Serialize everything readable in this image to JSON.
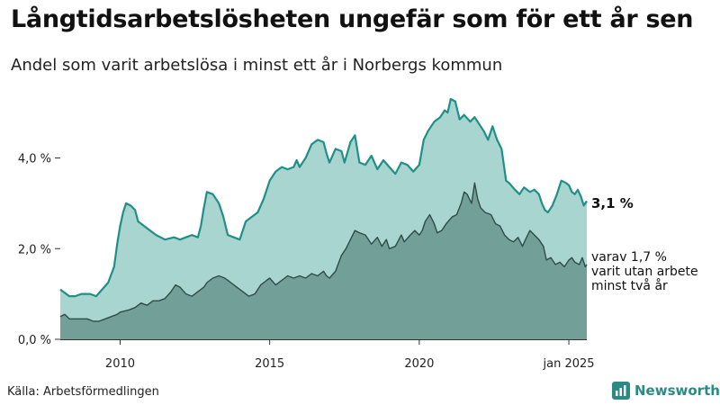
{
  "title": "Långtidsarbetslösheten ungefär som för ett år sen",
  "subtitle": "Andel som varit arbetslösa i minst ett år i Norbergs kommun",
  "source": "Källa: Arbetsförmedlingen",
  "brand": "Newsworthy",
  "end_label_total": "3,1 %",
  "end_label_long_1": "varav 1,7 %",
  "end_label_long_2": "varit utan arbete",
  "end_label_long_3": "minst två år",
  "colors": {
    "total_fill": "#a8d5cf",
    "total_line": "#1f9086",
    "long_fill": "#729f98",
    "long_line": "#2f4c46",
    "axis": "#333333",
    "brand": "#2a8a84"
  },
  "chart_data": {
    "type": "area",
    "x_start": "2008-01",
    "x_end": "2025-01",
    "x_step": "month",
    "x_ticks": [
      {
        "value": 2010,
        "label": "2010"
      },
      {
        "value": 2015,
        "label": "2015"
      },
      {
        "value": 2020,
        "label": "2020"
      },
      {
        "value": 2025,
        "label": "jan 2025"
      }
    ],
    "y_ticks": [
      {
        "value": 0,
        "label": "0,0 %"
      },
      {
        "value": 2,
        "label": "2,0 %"
      },
      {
        "value": 4,
        "label": "4,0 %"
      }
    ],
    "ylim": [
      0,
      5.4
    ],
    "series": [
      {
        "name": "Andel som varit arbetslösa i minst ett år",
        "key": "total",
        "anchors": [
          [
            2008.0,
            1.1
          ],
          [
            2008.3,
            0.95
          ],
          [
            2008.5,
            0.95
          ],
          [
            2008.7,
            1.0
          ],
          [
            2009.0,
            1.0
          ],
          [
            2009.2,
            0.95
          ],
          [
            2009.4,
            1.1
          ],
          [
            2009.6,
            1.25
          ],
          [
            2009.8,
            1.6
          ],
          [
            2009.9,
            2.1
          ],
          [
            2010.0,
            2.5
          ],
          [
            2010.1,
            2.8
          ],
          [
            2010.2,
            3.0
          ],
          [
            2010.35,
            2.95
          ],
          [
            2010.5,
            2.85
          ],
          [
            2010.6,
            2.6
          ],
          [
            2010.8,
            2.5
          ],
          [
            2011.0,
            2.4
          ],
          [
            2011.2,
            2.3
          ],
          [
            2011.5,
            2.2
          ],
          [
            2011.8,
            2.25
          ],
          [
            2012.0,
            2.2
          ],
          [
            2012.2,
            2.25
          ],
          [
            2012.4,
            2.3
          ],
          [
            2012.6,
            2.25
          ],
          [
            2012.7,
            2.5
          ],
          [
            2012.8,
            2.9
          ],
          [
            2012.9,
            3.25
          ],
          [
            2013.1,
            3.2
          ],
          [
            2013.3,
            3.0
          ],
          [
            2013.45,
            2.7
          ],
          [
            2013.6,
            2.3
          ],
          [
            2013.8,
            2.25
          ],
          [
            2014.0,
            2.2
          ],
          [
            2014.2,
            2.6
          ],
          [
            2014.4,
            2.7
          ],
          [
            2014.6,
            2.8
          ],
          [
            2014.8,
            3.1
          ],
          [
            2015.0,
            3.5
          ],
          [
            2015.2,
            3.7
          ],
          [
            2015.4,
            3.8
          ],
          [
            2015.6,
            3.75
          ],
          [
            2015.8,
            3.8
          ],
          [
            2015.9,
            3.95
          ],
          [
            2016.0,
            3.8
          ],
          [
            2016.2,
            4.0
          ],
          [
            2016.4,
            4.3
          ],
          [
            2016.6,
            4.4
          ],
          [
            2016.8,
            4.35
          ],
          [
            2016.9,
            4.1
          ],
          [
            2017.0,
            3.9
          ],
          [
            2017.2,
            4.2
          ],
          [
            2017.4,
            4.15
          ],
          [
            2017.5,
            3.9
          ],
          [
            2017.7,
            4.35
          ],
          [
            2017.85,
            4.5
          ],
          [
            2017.95,
            4.1
          ],
          [
            2018.0,
            3.9
          ],
          [
            2018.2,
            3.85
          ],
          [
            2018.4,
            4.05
          ],
          [
            2018.6,
            3.75
          ],
          [
            2018.8,
            3.95
          ],
          [
            2019.0,
            3.8
          ],
          [
            2019.2,
            3.65
          ],
          [
            2019.4,
            3.9
          ],
          [
            2019.6,
            3.85
          ],
          [
            2019.8,
            3.7
          ],
          [
            2020.0,
            3.85
          ],
          [
            2020.15,
            4.4
          ],
          [
            2020.3,
            4.6
          ],
          [
            2020.5,
            4.8
          ],
          [
            2020.7,
            4.9
          ],
          [
            2020.85,
            5.05
          ],
          [
            2020.95,
            5.0
          ],
          [
            2021.05,
            5.3
          ],
          [
            2021.2,
            5.25
          ],
          [
            2021.35,
            4.85
          ],
          [
            2021.5,
            4.95
          ],
          [
            2021.7,
            4.8
          ],
          [
            2021.85,
            4.9
          ],
          [
            2022.0,
            4.75
          ],
          [
            2022.15,
            4.6
          ],
          [
            2022.3,
            4.4
          ],
          [
            2022.45,
            4.7
          ],
          [
            2022.6,
            4.4
          ],
          [
            2022.75,
            4.2
          ],
          [
            2022.9,
            3.5
          ],
          [
            2023.0,
            3.45
          ],
          [
            2023.2,
            3.3
          ],
          [
            2023.35,
            3.2
          ],
          [
            2023.5,
            3.35
          ],
          [
            2023.7,
            3.25
          ],
          [
            2023.85,
            3.3
          ],
          [
            2024.0,
            3.2
          ],
          [
            2024.1,
            3.0
          ],
          [
            2024.2,
            2.85
          ],
          [
            2024.3,
            2.8
          ],
          [
            2024.45,
            2.95
          ],
          [
            2024.6,
            3.2
          ],
          [
            2024.75,
            3.5
          ],
          [
            2024.9,
            3.45
          ],
          [
            2025.0,
            3.4
          ],
          [
            2025.1,
            3.25
          ],
          [
            2025.2,
            3.2
          ],
          [
            2025.3,
            3.3
          ],
          [
            2025.4,
            3.15
          ],
          [
            2025.5,
            2.95
          ],
          [
            2025.6,
            3.05
          ]
        ]
      },
      {
        "name": "varit utan arbete minst två år",
        "key": "long",
        "anchors": [
          [
            2008.0,
            0.5
          ],
          [
            2008.15,
            0.55
          ],
          [
            2008.3,
            0.45
          ],
          [
            2008.6,
            0.45
          ],
          [
            2008.9,
            0.45
          ],
          [
            2009.1,
            0.4
          ],
          [
            2009.3,
            0.4
          ],
          [
            2009.5,
            0.45
          ],
          [
            2009.7,
            0.5
          ],
          [
            2009.9,
            0.55
          ],
          [
            2010.0,
            0.6
          ],
          [
            2010.3,
            0.65
          ],
          [
            2010.5,
            0.7
          ],
          [
            2010.7,
            0.8
          ],
          [
            2010.9,
            0.75
          ],
          [
            2011.1,
            0.85
          ],
          [
            2011.3,
            0.85
          ],
          [
            2011.5,
            0.9
          ],
          [
            2011.7,
            1.05
          ],
          [
            2011.85,
            1.2
          ],
          [
            2012.0,
            1.15
          ],
          [
            2012.2,
            1.0
          ],
          [
            2012.4,
            0.95
          ],
          [
            2012.6,
            1.05
          ],
          [
            2012.8,
            1.15
          ],
          [
            2012.9,
            1.25
          ],
          [
            2013.1,
            1.35
          ],
          [
            2013.3,
            1.4
          ],
          [
            2013.5,
            1.35
          ],
          [
            2013.7,
            1.25
          ],
          [
            2013.9,
            1.15
          ],
          [
            2014.1,
            1.05
          ],
          [
            2014.3,
            0.95
          ],
          [
            2014.5,
            1.0
          ],
          [
            2014.7,
            1.2
          ],
          [
            2014.9,
            1.3
          ],
          [
            2015.0,
            1.35
          ],
          [
            2015.2,
            1.2
          ],
          [
            2015.4,
            1.3
          ],
          [
            2015.6,
            1.4
          ],
          [
            2015.8,
            1.35
          ],
          [
            2016.0,
            1.4
          ],
          [
            2016.2,
            1.35
          ],
          [
            2016.4,
            1.45
          ],
          [
            2016.6,
            1.4
          ],
          [
            2016.8,
            1.5
          ],
          [
            2016.9,
            1.4
          ],
          [
            2017.0,
            1.35
          ],
          [
            2017.2,
            1.5
          ],
          [
            2017.4,
            1.85
          ],
          [
            2017.55,
            2.0
          ],
          [
            2017.7,
            2.2
          ],
          [
            2017.85,
            2.4
          ],
          [
            2018.0,
            2.35
          ],
          [
            2018.2,
            2.3
          ],
          [
            2018.4,
            2.1
          ],
          [
            2018.6,
            2.25
          ],
          [
            2018.75,
            2.05
          ],
          [
            2018.9,
            2.2
          ],
          [
            2019.0,
            2.0
          ],
          [
            2019.2,
            2.05
          ],
          [
            2019.4,
            2.3
          ],
          [
            2019.5,
            2.15
          ],
          [
            2019.7,
            2.3
          ],
          [
            2019.85,
            2.4
          ],
          [
            2020.0,
            2.3
          ],
          [
            2020.1,
            2.4
          ],
          [
            2020.2,
            2.6
          ],
          [
            2020.35,
            2.75
          ],
          [
            2020.5,
            2.55
          ],
          [
            2020.6,
            2.35
          ],
          [
            2020.75,
            2.4
          ],
          [
            2020.9,
            2.55
          ],
          [
            2021.1,
            2.7
          ],
          [
            2021.25,
            2.75
          ],
          [
            2021.4,
            3.0
          ],
          [
            2021.5,
            3.25
          ],
          [
            2021.6,
            3.2
          ],
          [
            2021.75,
            3.0
          ],
          [
            2021.85,
            3.45
          ],
          [
            2021.95,
            3.1
          ],
          [
            2022.05,
            2.9
          ],
          [
            2022.2,
            2.8
          ],
          [
            2022.4,
            2.75
          ],
          [
            2022.55,
            2.55
          ],
          [
            2022.7,
            2.5
          ],
          [
            2022.85,
            2.3
          ],
          [
            2023.0,
            2.2
          ],
          [
            2023.15,
            2.15
          ],
          [
            2023.3,
            2.25
          ],
          [
            2023.45,
            2.05
          ],
          [
            2023.55,
            2.2
          ],
          [
            2023.7,
            2.4
          ],
          [
            2023.85,
            2.3
          ],
          [
            2024.0,
            2.2
          ],
          [
            2024.15,
            2.05
          ],
          [
            2024.25,
            1.75
          ],
          [
            2024.4,
            1.8
          ],
          [
            2024.55,
            1.65
          ],
          [
            2024.7,
            1.7
          ],
          [
            2024.85,
            1.6
          ],
          [
            2025.0,
            1.75
          ],
          [
            2025.1,
            1.8
          ],
          [
            2025.2,
            1.7
          ],
          [
            2025.35,
            1.65
          ],
          [
            2025.45,
            1.8
          ],
          [
            2025.55,
            1.6
          ],
          [
            2025.6,
            1.65
          ]
        ]
      }
    ]
  }
}
